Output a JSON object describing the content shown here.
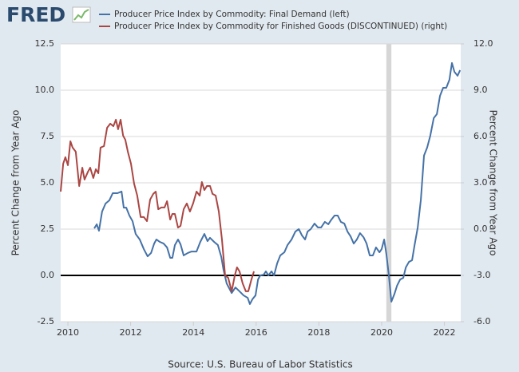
{
  "logo": "FRED",
  "chart_data": {
    "type": "line",
    "title": null,
    "y_label": "Percent Change from Year Ago",
    "y2_label": "Percent Change from Year Ago",
    "source": "Source: U.S. Bureau of Labor Statistics",
    "xlim": [
      2009.77,
      2022.52
    ],
    "xticks": [
      2010,
      2012,
      2014,
      2016,
      2018,
      2020,
      2022
    ],
    "ylim": [
      -2.5,
      12.5
    ],
    "yticks": [
      -2.5,
      {
        "value": 0,
        "label": "0.0"
      },
      2.5,
      {
        "value": 5,
        "label": "5.0"
      },
      7.5,
      {
        "value": 10,
        "label": "10.0"
      },
      12.5
    ],
    "y2lim": [
      -6,
      12
    ],
    "y2ticks": [
      {
        "value": -6,
        "label": "-6.0"
      },
      {
        "value": -3,
        "label": "-3.0"
      },
      {
        "value": 0,
        "label": "0.0"
      },
      {
        "value": 3,
        "label": "3.0"
      },
      {
        "value": 6,
        "label": "6.0"
      },
      {
        "value": 9,
        "label": "9.0"
      },
      {
        "value": 12,
        "label": "12.0"
      }
    ],
    "grid": true,
    "zero_line": true,
    "recessions": [
      [
        2020.15,
        2020.31
      ]
    ],
    "recession_color": "#d6d6d6",
    "series": [
      {
        "name": "Producer Price Index by Commodity: Final Demand (left)",
        "color": "#4572a7",
        "axis": "y",
        "x": [
          2010.84,
          2010.92,
          2010.99,
          2011.09,
          2011.2,
          2011.32,
          2011.43,
          2011.58,
          2011.71,
          2011.78,
          2011.86,
          2011.96,
          2012.06,
          2012.16,
          2012.29,
          2012.42,
          2012.54,
          2012.65,
          2012.75,
          2012.82,
          2012.93,
          2013.05,
          2013.16,
          2013.26,
          2013.33,
          2013.41,
          2013.51,
          2013.59,
          2013.69,
          2013.82,
          2013.94,
          2014.1,
          2014.22,
          2014.35,
          2014.45,
          2014.53,
          2014.66,
          2014.78,
          2014.89,
          2014.96,
          2015.06,
          2015.22,
          2015.34,
          2015.47,
          2015.6,
          2015.73,
          2015.8,
          2015.88,
          2015.98,
          2016.06,
          2016.13,
          2016.24,
          2016.31,
          2016.39,
          2016.49,
          2016.57,
          2016.67,
          2016.77,
          2016.9,
          2017.0,
          2017.13,
          2017.25,
          2017.36,
          2017.46,
          2017.56,
          2017.64,
          2017.74,
          2017.86,
          2017.97,
          2018.07,
          2018.19,
          2018.3,
          2018.4,
          2018.5,
          2018.6,
          2018.7,
          2018.81,
          2018.91,
          2019.01,
          2019.11,
          2019.21,
          2019.31,
          2019.42,
          2019.52,
          2019.62,
          2019.72,
          2019.82,
          2019.93,
          2020.0,
          2020.08,
          2020.15,
          2020.23,
          2020.31,
          2020.41,
          2020.49,
          2020.59,
          2020.69,
          2020.77,
          2020.87,
          2020.97,
          2021.05,
          2021.15,
          2021.25,
          2021.35,
          2021.45,
          2021.55,
          2021.66,
          2021.76,
          2021.86,
          2021.96,
          2022.06,
          2022.16,
          2022.24,
          2022.32,
          2022.42,
          2022.5
        ],
        "values": [
          2.54,
          2.76,
          2.41,
          3.45,
          3.88,
          4.05,
          4.44,
          4.44,
          4.53,
          3.66,
          3.66,
          3.23,
          2.93,
          2.24,
          1.94,
          1.42,
          1.03,
          1.21,
          1.72,
          1.94,
          1.81,
          1.72,
          1.51,
          0.95,
          0.95,
          1.64,
          1.94,
          1.68,
          1.08,
          1.21,
          1.29,
          1.29,
          1.81,
          2.24,
          1.85,
          2.03,
          1.81,
          1.64,
          0.99,
          0.3,
          -0.43,
          -0.95,
          -0.65,
          -0.86,
          -1.08,
          -1.21,
          -1.55,
          -1.29,
          -1.08,
          -0.22,
          0,
          0.04,
          0.22,
          0,
          0.22,
          0,
          0.65,
          1.08,
          1.25,
          1.64,
          1.94,
          2.37,
          2.5,
          2.16,
          1.94,
          2.37,
          2.5,
          2.8,
          2.59,
          2.59,
          2.89,
          2.76,
          3.02,
          3.23,
          3.23,
          2.89,
          2.8,
          2.37,
          2.11,
          1.72,
          1.94,
          2.28,
          2.07,
          1.72,
          1.08,
          1.08,
          1.51,
          1.25,
          1.42,
          1.94,
          1.16,
          0,
          -1.42,
          -0.99,
          -0.56,
          -0.22,
          -0.13,
          0.43,
          0.73,
          0.82,
          1.64,
          2.59,
          4.09,
          6.47,
          6.9,
          7.54,
          8.49,
          8.71,
          9.7,
          10.13,
          10.13,
          10.56,
          11.47,
          10.99,
          10.78,
          11.08
        ]
      },
      {
        "name": "Producer Price Index by Commodity for Finished Goods (DISCONTINUED) (right)",
        "color": "#aa4643",
        "axis": "y2",
        "x": [
          2009.77,
          2009.85,
          2009.92,
          2010.0,
          2010.08,
          2010.15,
          2010.25,
          2010.36,
          2010.46,
          2010.53,
          2010.64,
          2010.71,
          2010.81,
          2010.89,
          2010.97,
          2011.04,
          2011.15,
          2011.25,
          2011.35,
          2011.45,
          2011.53,
          2011.6,
          2011.68,
          2011.76,
          2011.83,
          2011.91,
          2012.01,
          2012.11,
          2012.21,
          2012.32,
          2012.42,
          2012.52,
          2012.62,
          2012.72,
          2012.8,
          2012.88,
          2012.98,
          2013.08,
          2013.16,
          2013.26,
          2013.33,
          2013.41,
          2013.51,
          2013.59,
          2013.69,
          2013.79,
          2013.89,
          2013.99,
          2014.1,
          2014.2,
          2014.27,
          2014.35,
          2014.43,
          2014.53,
          2014.61,
          2014.71,
          2014.81,
          2014.91,
          2015.01,
          2015.11,
          2015.22,
          2015.32,
          2015.39,
          2015.47,
          2015.57,
          2015.67,
          2015.75,
          2015.85,
          2015.93
        ],
        "values": [
          2.43,
          4.24,
          4.66,
          4.14,
          5.69,
          5.28,
          5.02,
          2.79,
          3.98,
          3.21,
          3.72,
          3.98,
          3.31,
          3.88,
          3.62,
          5.28,
          5.38,
          6.57,
          6.83,
          6.67,
          7.09,
          6.47,
          7.09,
          6.05,
          5.79,
          5.02,
          4.24,
          2.95,
          2.17,
          0.78,
          0.78,
          0.52,
          1.91,
          2.28,
          2.43,
          1.29,
          1.4,
          1.4,
          1.81,
          0.62,
          0.98,
          0.98,
          0.1,
          0.21,
          1.29,
          1.66,
          1.14,
          1.66,
          2.43,
          2.17,
          3.05,
          2.53,
          2.79,
          2.79,
          2.28,
          2.17,
          1.14,
          -0.67,
          -3.0,
          -3.16,
          -4.03,
          -3.0,
          -2.48,
          -2.74,
          -3.52,
          -4.03,
          -4.03,
          -3.26,
          -2.74
        ]
      }
    ]
  }
}
